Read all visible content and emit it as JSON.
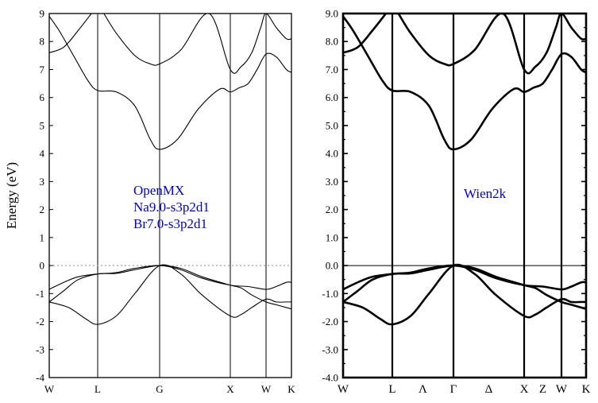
{
  "chart_data": [
    {
      "type": "line",
      "title": "",
      "ylabel": "Energy (eV)",
      "ylim": [
        -4,
        9
      ],
      "yticks": [
        -4,
        -3,
        -2,
        -1,
        0,
        1,
        2,
        3,
        4,
        5,
        6,
        7,
        8,
        9
      ],
      "ytick_labels": [
        "-4",
        "-3",
        "-2",
        "-1",
        "0",
        "1",
        "2",
        "3",
        "4",
        "5",
        "6",
        "7",
        "8",
        "9"
      ],
      "x_kpoints": [
        0,
        1,
        2,
        3,
        4,
        5
      ],
      "x_tick_labels": [
        "W",
        "L",
        "G",
        "X",
        "W",
        "K"
      ],
      "reference_line": {
        "y": 0,
        "style": "dotted",
        "color": "#aaaaaa"
      },
      "annotation": {
        "lines": [
          "OpenMX",
          "Na9.0-s3p2d1",
          "Br7.0-s3p2d1"
        ],
        "color": "#0000dd"
      },
      "grid": false,
      "series": [
        {
          "x": [
            0,
            0.3,
            0.6,
            0.87
          ],
          "values": [
            7.6,
            7.8,
            8.4,
            9.0
          ]
        },
        {
          "x": [
            0,
            0.2,
            0.5,
            0.8,
            1.0,
            1.3,
            1.6,
            1.85,
            2.0,
            2.25,
            2.55,
            2.85,
            3.0,
            3.25,
            3.5,
            3.75,
            4.0,
            4.4,
            4.8,
            5.0
          ],
          "values": [
            8.9,
            8.4,
            7.5,
            6.6,
            6.25,
            6.2,
            5.7,
            4.5,
            4.15,
            4.5,
            5.6,
            6.3,
            6.2,
            6.35,
            6.5,
            7.0,
            7.55,
            7.45,
            7.0,
            6.9
          ]
        },
        {
          "x": [
            1.1,
            1.3,
            1.6,
            1.85,
            2.0,
            2.3,
            2.7,
            3.0,
            3.3,
            3.6,
            3.85,
            4.0,
            4.4,
            4.8,
            5.0
          ],
          "values": [
            9.0,
            8.3,
            7.5,
            7.2,
            7.2,
            7.7,
            9.0,
            7.0,
            7.1,
            7.6,
            8.5,
            9.0,
            8.5,
            8.1,
            8.1
          ]
        },
        {
          "x": [
            0,
            0.3,
            0.6,
            1.0,
            1.3,
            1.6,
            2.0,
            2.3,
            2.6,
            3.0,
            3.5,
            4.0,
            4.4,
            4.8,
            5.0
          ],
          "values": [
            -0.85,
            -0.6,
            -0.4,
            -0.3,
            -0.25,
            -0.1,
            0.0,
            -0.15,
            -0.45,
            -0.7,
            -0.75,
            -0.85,
            -0.75,
            -0.6,
            -0.6
          ]
        },
        {
          "x": [
            0,
            0.4,
            0.75,
            1.0,
            1.3,
            1.6,
            2.0,
            2.3,
            2.6,
            3.0,
            3.3,
            3.6,
            4.0,
            4.4,
            4.8,
            5.0
          ],
          "values": [
            -1.3,
            -1.5,
            -1.9,
            -2.1,
            -1.8,
            -1.0,
            0.0,
            -0.3,
            -1.05,
            -1.8,
            -1.75,
            -1.5,
            -1.2,
            -1.3,
            -1.3,
            -1.3
          ]
        },
        {
          "x": [
            0,
            0.3,
            0.6,
            1.0,
            1.3,
            1.6,
            2.0,
            2.3,
            2.6,
            3.0,
            3.3,
            3.6,
            4.0,
            4.4,
            4.8,
            5.0
          ],
          "values": [
            -1.3,
            -0.9,
            -0.5,
            -0.3,
            -0.28,
            -0.15,
            0.0,
            -0.1,
            -0.4,
            -0.7,
            -0.8,
            -1.05,
            -1.3,
            -1.4,
            -1.5,
            -1.55
          ]
        }
      ]
    },
    {
      "type": "line",
      "title": "",
      "ylabel": "",
      "ylim": [
        -4,
        9
      ],
      "yticks": [
        -4,
        -3,
        -2,
        -1,
        0,
        1,
        2,
        3,
        4,
        5,
        6,
        7,
        8,
        9
      ],
      "ytick_labels": [
        "-4.0",
        "-3.0",
        "-2.0",
        "-1.0",
        "0.0",
        "1.0",
        "2.0",
        "3.0",
        "4.0",
        "5.0",
        "6.0",
        "7.0",
        "8.0",
        "9.0"
      ],
      "x_kpoints": [
        0,
        1,
        2,
        3,
        4,
        5
      ],
      "x_tick_labels": [
        "W",
        "L",
        "Λ",
        "Γ",
        "Δ",
        "X",
        "Z",
        "W",
        "K"
      ],
      "x_tick_label_positions": [
        0,
        1,
        1.5,
        2,
        2.5,
        3,
        3.5,
        4,
        5
      ],
      "reference_line": {
        "y": 0,
        "style": "solid",
        "color": "#000000"
      },
      "annotation": {
        "lines": [
          "Wien2k"
        ],
        "color": "#0000dd"
      },
      "grid": false,
      "series": [
        {
          "x": [
            0,
            0.3,
            0.6,
            0.87
          ],
          "values": [
            7.6,
            7.8,
            8.4,
            9.0
          ]
        },
        {
          "x": [
            0,
            0.2,
            0.5,
            0.8,
            1.0,
            1.3,
            1.6,
            1.85,
            2.0,
            2.25,
            2.55,
            2.85,
            3.0,
            3.25,
            3.5,
            3.75,
            4.0,
            4.4,
            4.8,
            5.0
          ],
          "values": [
            8.9,
            8.4,
            7.5,
            6.6,
            6.25,
            6.2,
            5.7,
            4.5,
            4.15,
            4.5,
            5.6,
            6.3,
            6.2,
            6.35,
            6.5,
            7.0,
            7.55,
            7.45,
            7.0,
            6.9
          ]
        },
        {
          "x": [
            1.1,
            1.3,
            1.6,
            1.85,
            2.0,
            2.3,
            2.7,
            3.0,
            3.3,
            3.6,
            3.85,
            4.0,
            4.4,
            4.8,
            5.0
          ],
          "values": [
            9.0,
            8.3,
            7.5,
            7.2,
            7.2,
            7.7,
            9.0,
            7.0,
            7.1,
            7.6,
            8.5,
            9.0,
            8.5,
            8.1,
            8.1
          ]
        },
        {
          "x": [
            0,
            0.3,
            0.6,
            1.0,
            1.3,
            1.6,
            2.0,
            2.3,
            2.6,
            3.0,
            3.5,
            4.0,
            4.4,
            4.8,
            5.0
          ],
          "values": [
            -0.85,
            -0.6,
            -0.4,
            -0.3,
            -0.25,
            -0.1,
            0.0,
            -0.15,
            -0.45,
            -0.7,
            -0.75,
            -0.85,
            -0.75,
            -0.6,
            -0.6
          ]
        },
        {
          "x": [
            0,
            0.4,
            0.75,
            1.0,
            1.3,
            1.6,
            2.0,
            2.3,
            2.6,
            3.0,
            3.3,
            3.6,
            4.0,
            4.4,
            4.8,
            5.0
          ],
          "values": [
            -1.3,
            -1.5,
            -1.9,
            -2.1,
            -1.8,
            -1.0,
            0.0,
            -0.3,
            -1.05,
            -1.8,
            -1.75,
            -1.5,
            -1.2,
            -1.3,
            -1.3,
            -1.3
          ]
        },
        {
          "x": [
            0,
            0.3,
            0.6,
            1.0,
            1.3,
            1.6,
            2.0,
            2.3,
            2.6,
            3.0,
            3.3,
            3.6,
            4.0,
            4.4,
            4.8,
            5.0
          ],
          "values": [
            -1.3,
            -0.9,
            -0.5,
            -0.3,
            -0.28,
            -0.15,
            0.0,
            -0.1,
            -0.4,
            -0.7,
            -0.8,
            -1.05,
            -1.3,
            -1.4,
            -1.5,
            -1.55
          ]
        }
      ]
    }
  ]
}
